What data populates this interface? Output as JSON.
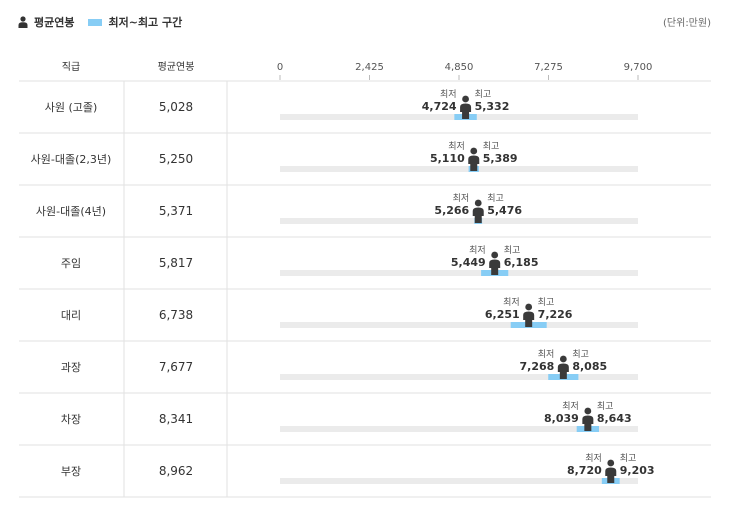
{
  "legend": {
    "avg_label": "평균연봉",
    "range_label": "최저~최고 구간",
    "person_icon": "person-icon"
  },
  "unit": "(단위:만원)",
  "colors": {
    "range": "#87cdf5",
    "track": "#ebebeb",
    "person": "#3a3a3a",
    "divider": "#e2e2e2"
  },
  "chart_data": {
    "type": "range",
    "headers": {
      "position": "직급",
      "average": "평균연봉"
    },
    "xlim": [
      0,
      9700
    ],
    "ticks": [
      "0",
      "2,425",
      "4,850",
      "7,275",
      "9,700"
    ],
    "min_caption": "최저",
    "max_caption": "최고",
    "rows": [
      {
        "label": "사원 (고졸)",
        "avg": 5028,
        "avg_text": "5,028",
        "min": 4724,
        "min_text": "4,724",
        "max": 5332,
        "max_text": "5,332"
      },
      {
        "label": "사원-대졸(2,3년)",
        "avg": 5250,
        "avg_text": "5,250",
        "min": 5110,
        "min_text": "5,110",
        "max": 5389,
        "max_text": "5,389"
      },
      {
        "label": "사원-대졸(4년)",
        "avg": 5371,
        "avg_text": "5,371",
        "min": 5266,
        "min_text": "5,266",
        "max": 5476,
        "max_text": "5,476"
      },
      {
        "label": "주임",
        "avg": 5817,
        "avg_text": "5,817",
        "min": 5449,
        "min_text": "5,449",
        "max": 6185,
        "max_text": "6,185"
      },
      {
        "label": "대리",
        "avg": 6738,
        "avg_text": "6,738",
        "min": 6251,
        "min_text": "6,251",
        "max": 7226,
        "max_text": "7,226"
      },
      {
        "label": "과장",
        "avg": 7677,
        "avg_text": "7,677",
        "min": 7268,
        "min_text": "7,268",
        "max": 8085,
        "max_text": "8,085"
      },
      {
        "label": "차장",
        "avg": 8341,
        "avg_text": "8,341",
        "min": 8039,
        "min_text": "8,039",
        "max": 8643,
        "max_text": "8,643"
      },
      {
        "label": "부장",
        "avg": 8962,
        "avg_text": "8,962",
        "min": 8720,
        "min_text": "8,720",
        "max": 9203,
        "max_text": "9,203"
      }
    ]
  }
}
